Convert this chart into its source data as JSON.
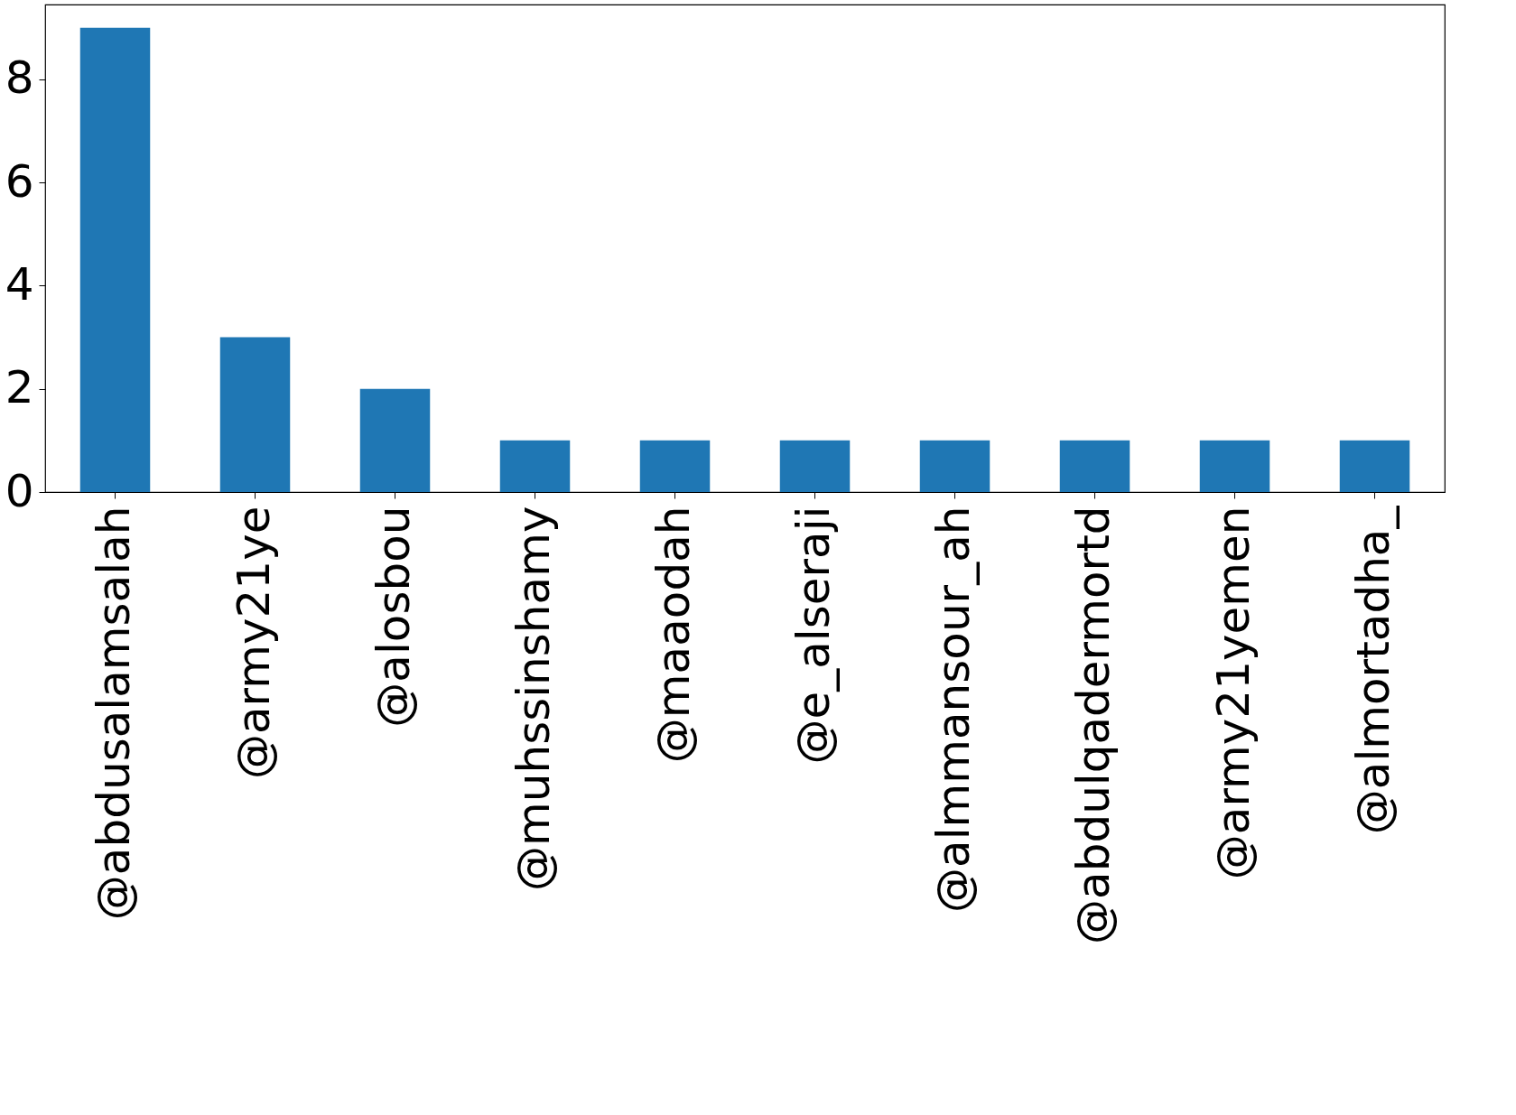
{
  "chart_data": {
    "type": "bar",
    "categories": [
      "@abdusalamsalah",
      "@army21ye",
      "@alosbou",
      "@muhssinshamy",
      "@maaodah",
      "@e_alseraji",
      "@almmansour_ah",
      "@abdulqadermortd",
      "@army21yemen",
      "@almortadha_"
    ],
    "values": [
      9,
      3,
      2,
      1,
      1,
      1,
      1,
      1,
      1,
      1
    ],
    "color": "#1f77b4",
    "ylim": [
      0,
      9.45
    ],
    "yticks": [
      0,
      2,
      4,
      6,
      8
    ],
    "grid": false
  }
}
